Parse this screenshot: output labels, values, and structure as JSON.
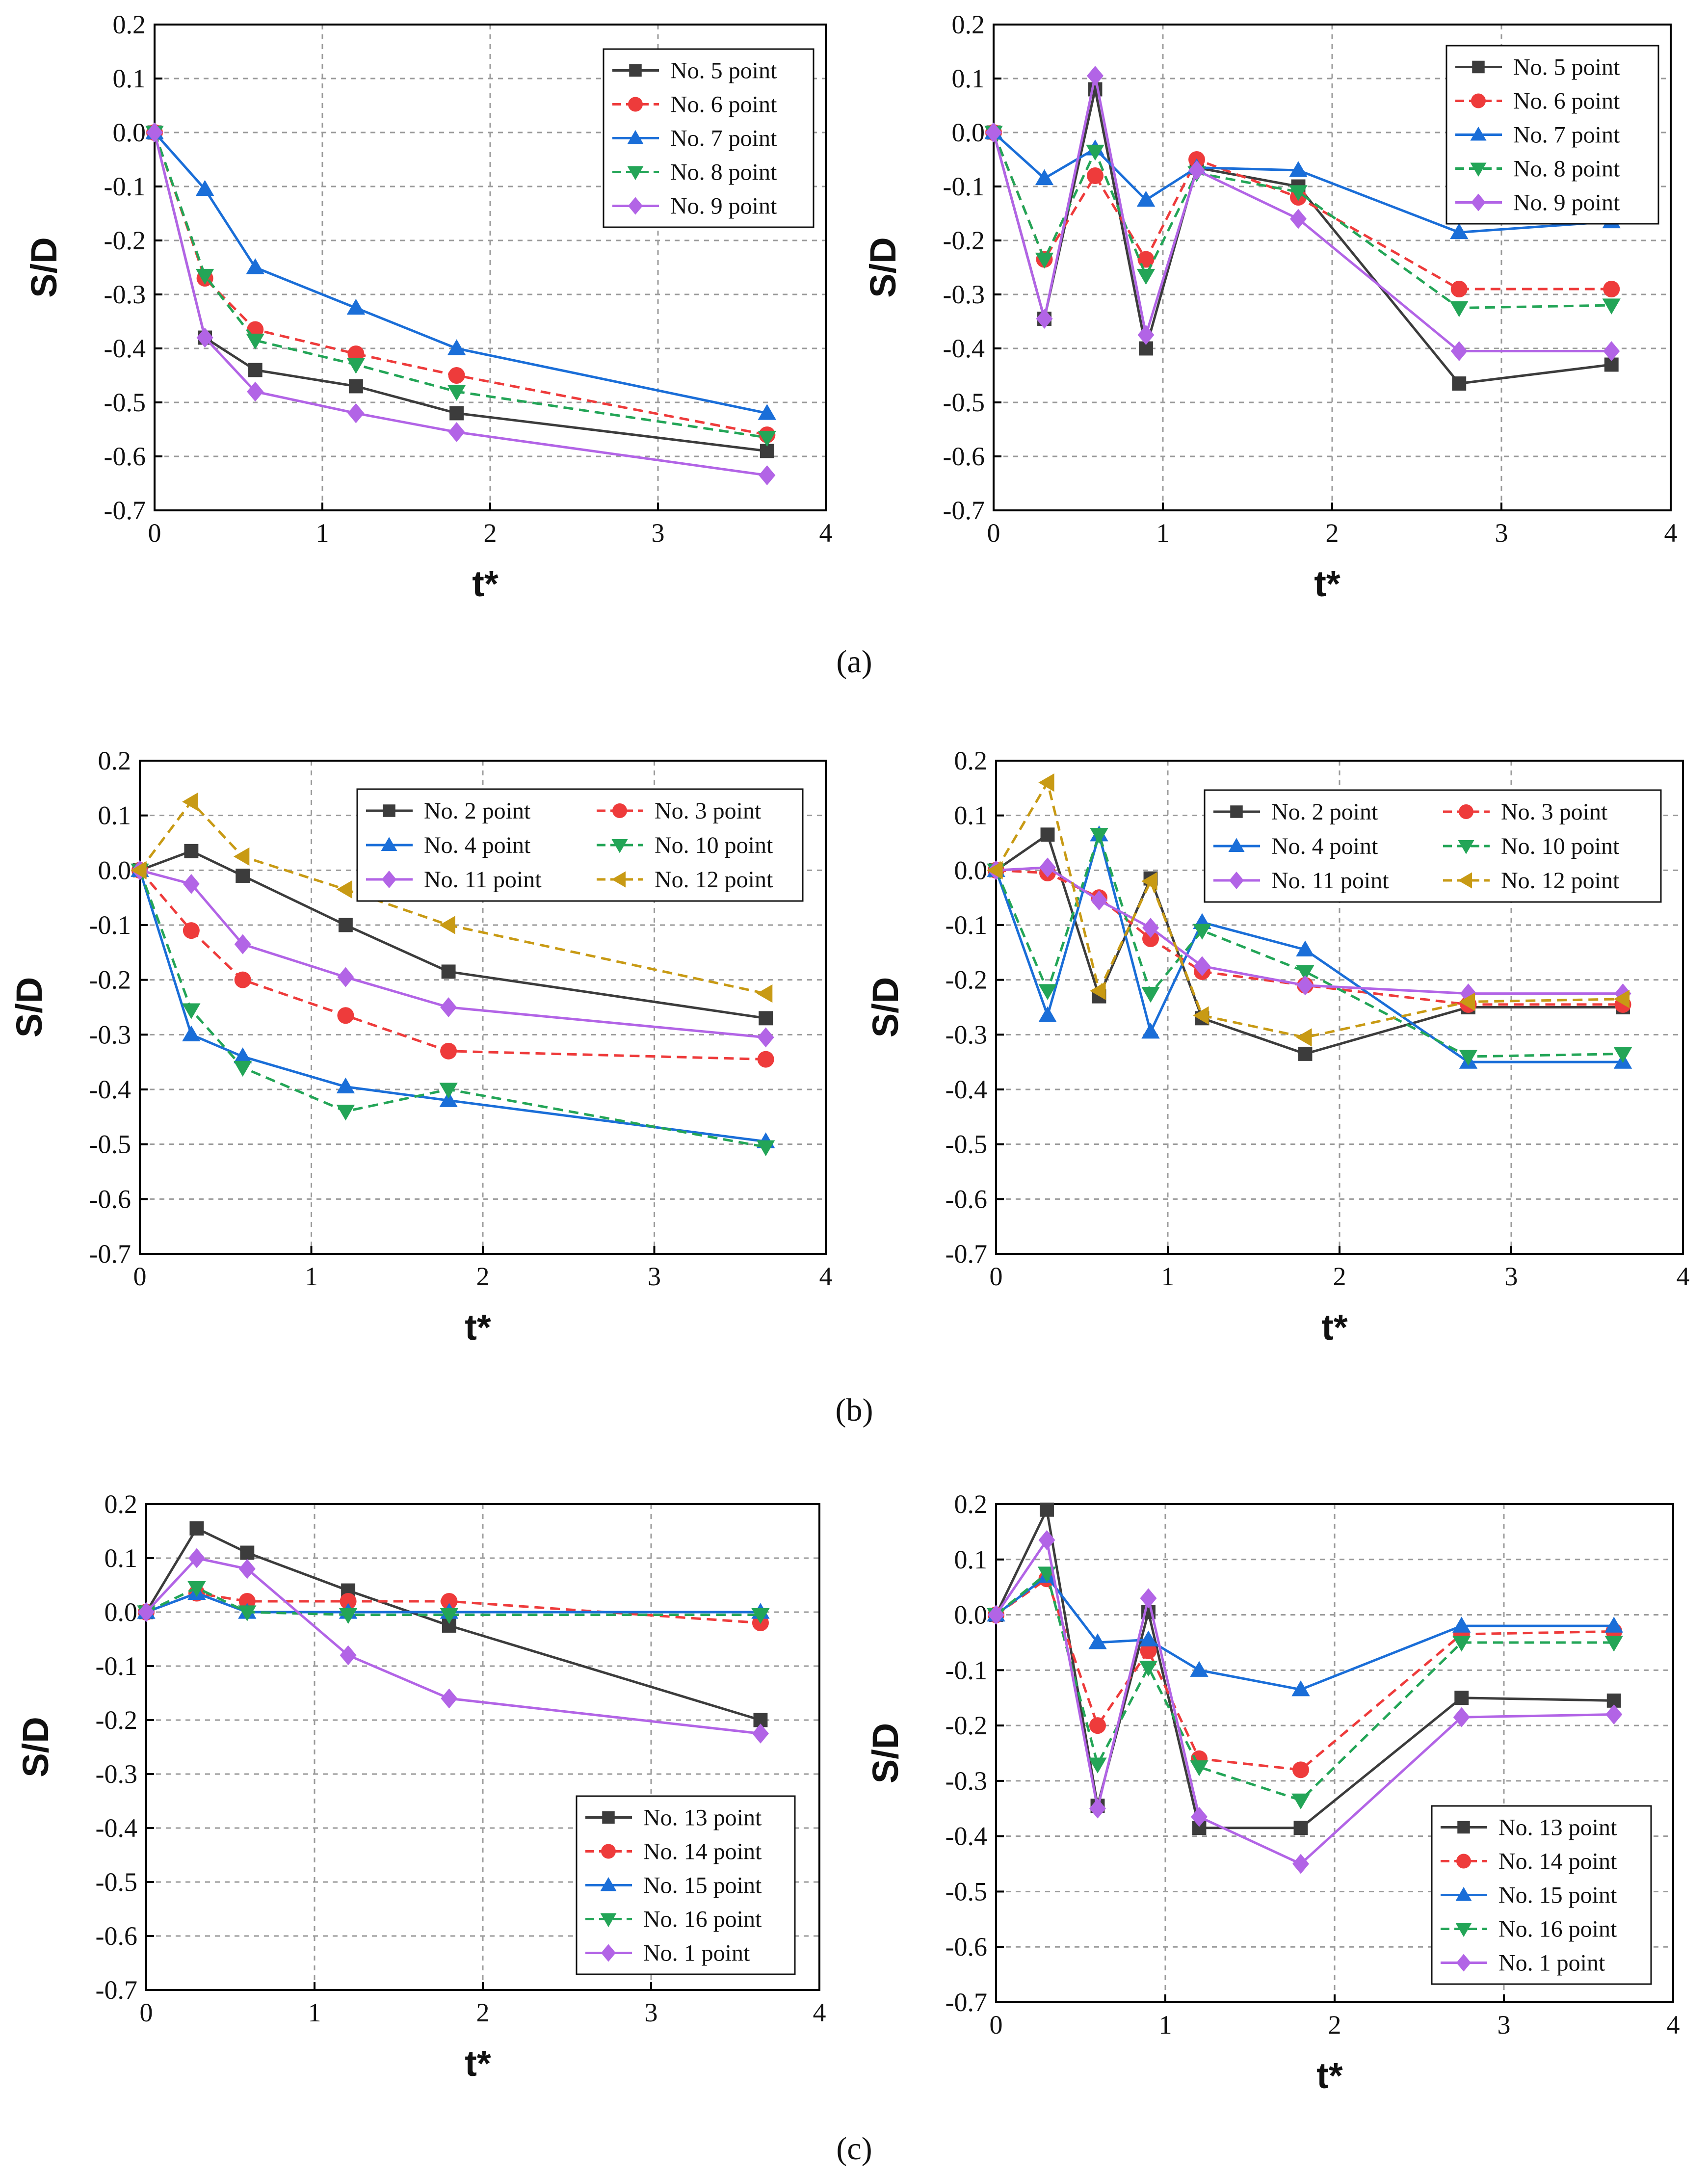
{
  "figure": {
    "panel_labels": [
      "(a)",
      "(b)",
      "(c)"
    ]
  },
  "colors": {
    "black": "#3c3c3c",
    "red": "#ee3b3b",
    "blue": "#1a6ed8",
    "green": "#23a557",
    "purple": "#b264e6",
    "gold": "#c89a14"
  },
  "chart_data": [
    {
      "type": "line",
      "panel": "(a)",
      "side": "left",
      "xlabel": "t*",
      "ylabel": "S/D",
      "xlim": [
        0,
        4
      ],
      "ylim": [
        -0.7,
        0.2
      ],
      "xticks": [
        "0",
        "1",
        "2",
        "3",
        "4"
      ],
      "yticks": [
        "0.2",
        "0.1",
        "0.0",
        "-0.1",
        "-0.2",
        "-0.3",
        "-0.4",
        "-0.5",
        "-0.6",
        "-0.7"
      ],
      "grid": true,
      "legend_position": "top-right",
      "legend_columns": 1,
      "x": [
        0,
        0.3,
        0.6,
        1.2,
        1.8,
        3.65
      ],
      "series": [
        {
          "name": "No. 5 point",
          "color": "black",
          "marker": "square",
          "dashed": false,
          "values": [
            0,
            -0.38,
            -0.44,
            -0.47,
            -0.52,
            -0.59
          ]
        },
        {
          "name": "No. 6 point",
          "color": "red",
          "marker": "circle",
          "dashed": true,
          "values": [
            0,
            -0.27,
            -0.365,
            -0.41,
            -0.45,
            -0.56
          ]
        },
        {
          "name": "No. 7 point",
          "color": "blue",
          "marker": "triangle-up",
          "dashed": false,
          "values": [
            0,
            -0.105,
            -0.25,
            -0.325,
            -0.4,
            -0.52
          ]
        },
        {
          "name": "No. 8 point",
          "color": "green",
          "marker": "triangle-down",
          "dashed": true,
          "values": [
            0,
            -0.265,
            -0.385,
            -0.43,
            -0.48,
            -0.565
          ]
        },
        {
          "name": "No. 9 point",
          "color": "purple",
          "marker": "diamond",
          "dashed": false,
          "values": [
            0,
            -0.38,
            -0.48,
            -0.52,
            -0.555,
            -0.635
          ]
        }
      ]
    },
    {
      "type": "line",
      "panel": "(a)",
      "side": "right",
      "xlabel": "t*",
      "ylabel": "S/D",
      "xlim": [
        0,
        4
      ],
      "ylim": [
        -0.7,
        0.2
      ],
      "xticks": [
        "0",
        "1",
        "2",
        "3",
        "4"
      ],
      "yticks": [
        "0.2",
        "0.1",
        "0.0",
        "-0.1",
        "-0.2",
        "-0.3",
        "-0.4",
        "-0.5",
        "-0.6",
        "-0.7"
      ],
      "grid": true,
      "legend_position": "top-right",
      "legend_columns": 1,
      "x": [
        0,
        0.3,
        0.6,
        0.9,
        1.2,
        1.8,
        2.75,
        3.65
      ],
      "series": [
        {
          "name": "No. 5 point",
          "color": "black",
          "marker": "square",
          "dashed": false,
          "values": [
            0,
            -0.345,
            0.08,
            -0.4,
            -0.065,
            -0.1,
            -0.465,
            -0.43
          ]
        },
        {
          "name": "No. 6 point",
          "color": "red",
          "marker": "circle",
          "dashed": true,
          "values": [
            0,
            -0.235,
            -0.08,
            -0.235,
            -0.05,
            -0.12,
            -0.29,
            -0.29
          ]
        },
        {
          "name": "No. 7 point",
          "color": "blue",
          "marker": "triangle-up",
          "dashed": false,
          "values": [
            0,
            -0.085,
            -0.03,
            -0.125,
            -0.065,
            -0.07,
            -0.185,
            -0.165
          ]
        },
        {
          "name": "No. 8 point",
          "color": "green",
          "marker": "triangle-down",
          "dashed": true,
          "values": [
            0,
            -0.235,
            -0.035,
            -0.265,
            -0.075,
            -0.11,
            -0.325,
            -0.32
          ]
        },
        {
          "name": "No. 9 point",
          "color": "purple",
          "marker": "diamond",
          "dashed": false,
          "values": [
            0,
            -0.345,
            0.105,
            -0.375,
            -0.07,
            -0.16,
            -0.405,
            -0.405
          ]
        }
      ]
    },
    {
      "type": "line",
      "panel": "(b)",
      "side": "left",
      "xlabel": "t*",
      "ylabel": "S/D",
      "xlim": [
        0,
        4
      ],
      "ylim": [
        -0.7,
        0.2
      ],
      "xticks": [
        "0",
        "1",
        "2",
        "3",
        "4"
      ],
      "yticks": [
        "0.2",
        "0.1",
        "0.0",
        "-0.1",
        "-0.2",
        "-0.3",
        "-0.4",
        "-0.5",
        "-0.6",
        "-0.7"
      ],
      "grid": true,
      "legend_position": "top-right",
      "legend_columns": 2,
      "x": [
        0,
        0.3,
        0.6,
        1.2,
        1.8,
        3.65
      ],
      "series": [
        {
          "name": "No. 2 point",
          "color": "black",
          "marker": "square",
          "dashed": false,
          "values": [
            0,
            0.035,
            -0.01,
            -0.1,
            -0.185,
            -0.27
          ]
        },
        {
          "name": "No. 3 point",
          "color": "red",
          "marker": "circle",
          "dashed": true,
          "values": [
            0,
            -0.11,
            -0.2,
            -0.265,
            -0.33,
            -0.345
          ]
        },
        {
          "name": "No. 4 point",
          "color": "blue",
          "marker": "triangle-up",
          "dashed": false,
          "values": [
            0,
            -0.3,
            -0.34,
            -0.395,
            -0.42,
            -0.495
          ]
        },
        {
          "name": "No. 10 point",
          "color": "green",
          "marker": "triangle-down",
          "dashed": true,
          "values": [
            0,
            -0.255,
            -0.36,
            -0.44,
            -0.4,
            -0.505
          ]
        },
        {
          "name": "No. 11 point",
          "color": "purple",
          "marker": "diamond",
          "dashed": false,
          "values": [
            0,
            -0.025,
            -0.135,
            -0.195,
            -0.25,
            -0.305
          ]
        },
        {
          "name": "No. 12 point",
          "color": "gold",
          "marker": "triangle-left",
          "dashed": true,
          "values": [
            0,
            0.125,
            0.025,
            -0.035,
            -0.1,
            -0.225
          ]
        }
      ]
    },
    {
      "type": "line",
      "panel": "(b)",
      "side": "right",
      "xlabel": "t*",
      "ylabel": "S/D",
      "xlim": [
        0,
        4
      ],
      "ylim": [
        -0.7,
        0.2
      ],
      "xticks": [
        "0",
        "1",
        "2",
        "3",
        "4"
      ],
      "yticks": [
        "0.2",
        "0.1",
        "0.0",
        "-0.1",
        "-0.2",
        "-0.3",
        "-0.4",
        "-0.5",
        "-0.6",
        "-0.7"
      ],
      "grid": true,
      "legend_position": "top-right",
      "legend_columns": 2,
      "x": [
        0,
        0.3,
        0.6,
        0.9,
        1.2,
        1.8,
        2.75,
        3.65
      ],
      "series": [
        {
          "name": "No. 2 point",
          "color": "black",
          "marker": "square",
          "dashed": false,
          "values": [
            0,
            0.065,
            -0.23,
            -0.015,
            -0.27,
            -0.335,
            -0.25,
            -0.25
          ]
        },
        {
          "name": "No. 3 point",
          "color": "red",
          "marker": "circle",
          "dashed": true,
          "values": [
            0,
            -0.005,
            -0.05,
            -0.125,
            -0.185,
            -0.21,
            -0.245,
            -0.245
          ]
        },
        {
          "name": "No. 4 point",
          "color": "blue",
          "marker": "triangle-up",
          "dashed": false,
          "values": [
            0,
            -0.265,
            0.065,
            -0.295,
            -0.095,
            -0.145,
            -0.35,
            -0.35
          ]
        },
        {
          "name": "No. 10 point",
          "color": "green",
          "marker": "triangle-down",
          "dashed": true,
          "values": [
            0,
            -0.22,
            0.065,
            -0.225,
            -0.11,
            -0.185,
            -0.34,
            -0.335
          ]
        },
        {
          "name": "No. 11 point",
          "color": "purple",
          "marker": "diamond",
          "dashed": false,
          "values": [
            0,
            0.005,
            -0.055,
            -0.105,
            -0.175,
            -0.21,
            -0.225,
            -0.225
          ]
        },
        {
          "name": "No. 12 point",
          "color": "gold",
          "marker": "triangle-left",
          "dashed": true,
          "values": [
            0,
            0.16,
            -0.22,
            -0.02,
            -0.265,
            -0.305,
            -0.24,
            -0.235
          ]
        }
      ]
    },
    {
      "type": "line",
      "panel": "(c)",
      "side": "left",
      "xlabel": "t*",
      "ylabel": "S/D",
      "xlim": [
        0,
        4
      ],
      "ylim": [
        -0.7,
        0.2
      ],
      "xticks": [
        "0",
        "1",
        "2",
        "3",
        "4"
      ],
      "yticks": [
        "0.2",
        "0.1",
        "0.0",
        "-0.1",
        "-0.2",
        "-0.3",
        "-0.4",
        "-0.5",
        "-0.6",
        "-0.7"
      ],
      "grid": true,
      "legend_position": "bottom-right",
      "legend_columns": 1,
      "x": [
        0,
        0.3,
        0.6,
        1.2,
        1.8,
        3.65
      ],
      "series": [
        {
          "name": "No. 13 point",
          "color": "black",
          "marker": "square",
          "dashed": false,
          "values": [
            0,
            0.155,
            0.11,
            0.04,
            -0.025,
            -0.2
          ]
        },
        {
          "name": "No. 14 point",
          "color": "red",
          "marker": "circle",
          "dashed": true,
          "values": [
            0,
            0.035,
            0.02,
            0.02,
            0.02,
            -0.02
          ]
        },
        {
          "name": "No. 15 point",
          "color": "blue",
          "marker": "triangle-up",
          "dashed": false,
          "values": [
            0,
            0.035,
            0.0,
            0.0,
            0.0,
            0.0
          ]
        },
        {
          "name": "No. 16 point",
          "color": "green",
          "marker": "triangle-down",
          "dashed": true,
          "values": [
            0,
            0.045,
            0.0,
            -0.005,
            -0.005,
            -0.005
          ]
        },
        {
          "name": "No. 1 point",
          "color": "purple",
          "marker": "diamond",
          "dashed": false,
          "values": [
            0,
            0.1,
            0.08,
            -0.08,
            -0.16,
            -0.225
          ]
        }
      ]
    },
    {
      "type": "line",
      "panel": "(c)",
      "side": "right",
      "xlabel": "t*",
      "ylabel": "S/D",
      "xlim": [
        0,
        4
      ],
      "ylim": [
        -0.7,
        0.2
      ],
      "xticks": [
        "0",
        "1",
        "2",
        "3",
        "4"
      ],
      "yticks": [
        "0.2",
        "0.1",
        "0.0",
        "-0.1",
        "-0.2",
        "-0.3",
        "-0.4",
        "-0.5",
        "-0.6",
        "-0.7"
      ],
      "grid": true,
      "legend_position": "bottom-right",
      "legend_columns": 1,
      "x": [
        0,
        0.3,
        0.6,
        0.9,
        1.2,
        1.8,
        2.75,
        3.65
      ],
      "series": [
        {
          "name": "No. 13 point",
          "color": "black",
          "marker": "square",
          "dashed": false,
          "values": [
            0,
            0.19,
            -0.345,
            0.005,
            -0.385,
            -0.385,
            -0.15,
            -0.155
          ]
        },
        {
          "name": "No. 14 point",
          "color": "red",
          "marker": "circle",
          "dashed": true,
          "values": [
            0,
            0.065,
            -0.2,
            -0.065,
            -0.26,
            -0.28,
            -0.035,
            -0.03
          ]
        },
        {
          "name": "No. 15 point",
          "color": "blue",
          "marker": "triangle-up",
          "dashed": false,
          "values": [
            0,
            0.07,
            -0.05,
            -0.045,
            -0.1,
            -0.135,
            -0.02,
            -0.02
          ]
        },
        {
          "name": "No. 16 point",
          "color": "green",
          "marker": "triangle-down",
          "dashed": true,
          "values": [
            0,
            0.075,
            -0.27,
            -0.095,
            -0.275,
            -0.335,
            -0.05,
            -0.05
          ]
        },
        {
          "name": "No. 1 point",
          "color": "purple",
          "marker": "diamond",
          "dashed": false,
          "values": [
            0,
            0.135,
            -0.35,
            0.03,
            -0.365,
            -0.45,
            -0.185,
            -0.18
          ]
        }
      ]
    }
  ]
}
